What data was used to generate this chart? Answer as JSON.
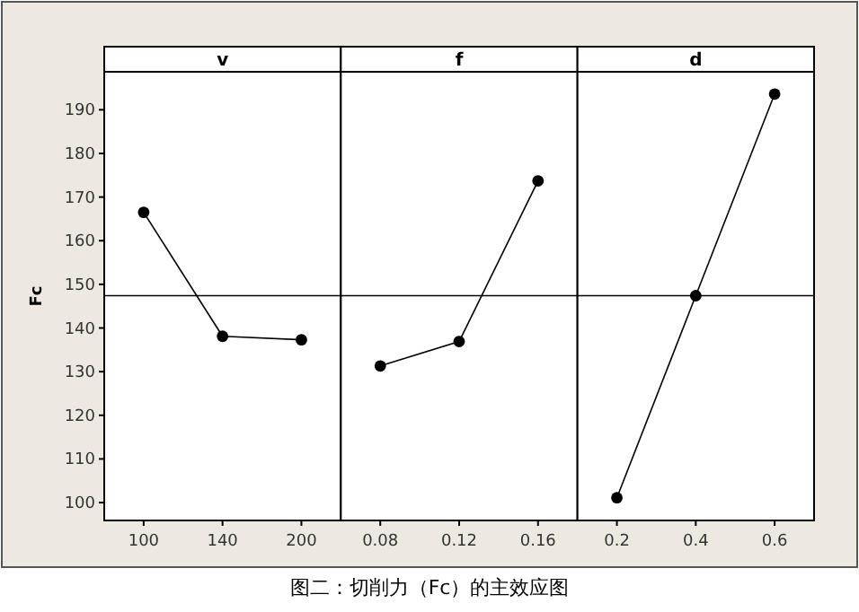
{
  "chart_data": [
    {
      "type": "line",
      "title": "v",
      "ylabel": "Fc",
      "categories": [
        "100",
        "140",
        "200"
      ],
      "series": [
        {
          "color": "#000000",
          "values": [
            166.5,
            138.1,
            137.3
          ]
        }
      ],
      "ylim": [
        95.9,
        198.7
      ],
      "yticks": [
        100,
        110,
        120,
        130,
        140,
        150,
        160,
        170,
        180,
        190
      ],
      "marker": "circle",
      "ref_lines": [
        {
          "axis": "y",
          "value": 147.4,
          "color": "#000000"
        }
      ],
      "annotations": [
        "图二：切削力（Fc）的主效应图"
      ]
    },
    {
      "type": "line",
      "title": "f",
      "categories": [
        "0.08",
        "0.12",
        "0.16"
      ],
      "series": [
        {
          "color": "#000000",
          "values": [
            131.3,
            136.9,
            173.7
          ]
        }
      ],
      "ylim": [
        95.9,
        198.7
      ],
      "yticks": [
        100,
        110,
        120,
        130,
        140,
        150,
        160,
        170,
        180,
        190
      ],
      "tick_labels": "x",
      "marker": "circle",
      "ref_lines": [
        {
          "axis": "y",
          "value": 147.4,
          "color": "#000000"
        }
      ]
    },
    {
      "type": "line",
      "title": "d",
      "categories": [
        "0.2",
        "0.4",
        "0.6"
      ],
      "series": [
        {
          "color": "#000000",
          "values": [
            101.1,
            147.4,
            193.6
          ]
        }
      ],
      "ylim": [
        95.9,
        198.7
      ],
      "yticks": [
        100,
        110,
        120,
        130,
        140,
        150,
        160,
        170,
        180,
        190
      ],
      "tick_labels": "x",
      "marker": "circle",
      "ref_lines": [
        {
          "axis": "y",
          "value": 147.4,
          "color": "#000000"
        }
      ]
    }
  ]
}
